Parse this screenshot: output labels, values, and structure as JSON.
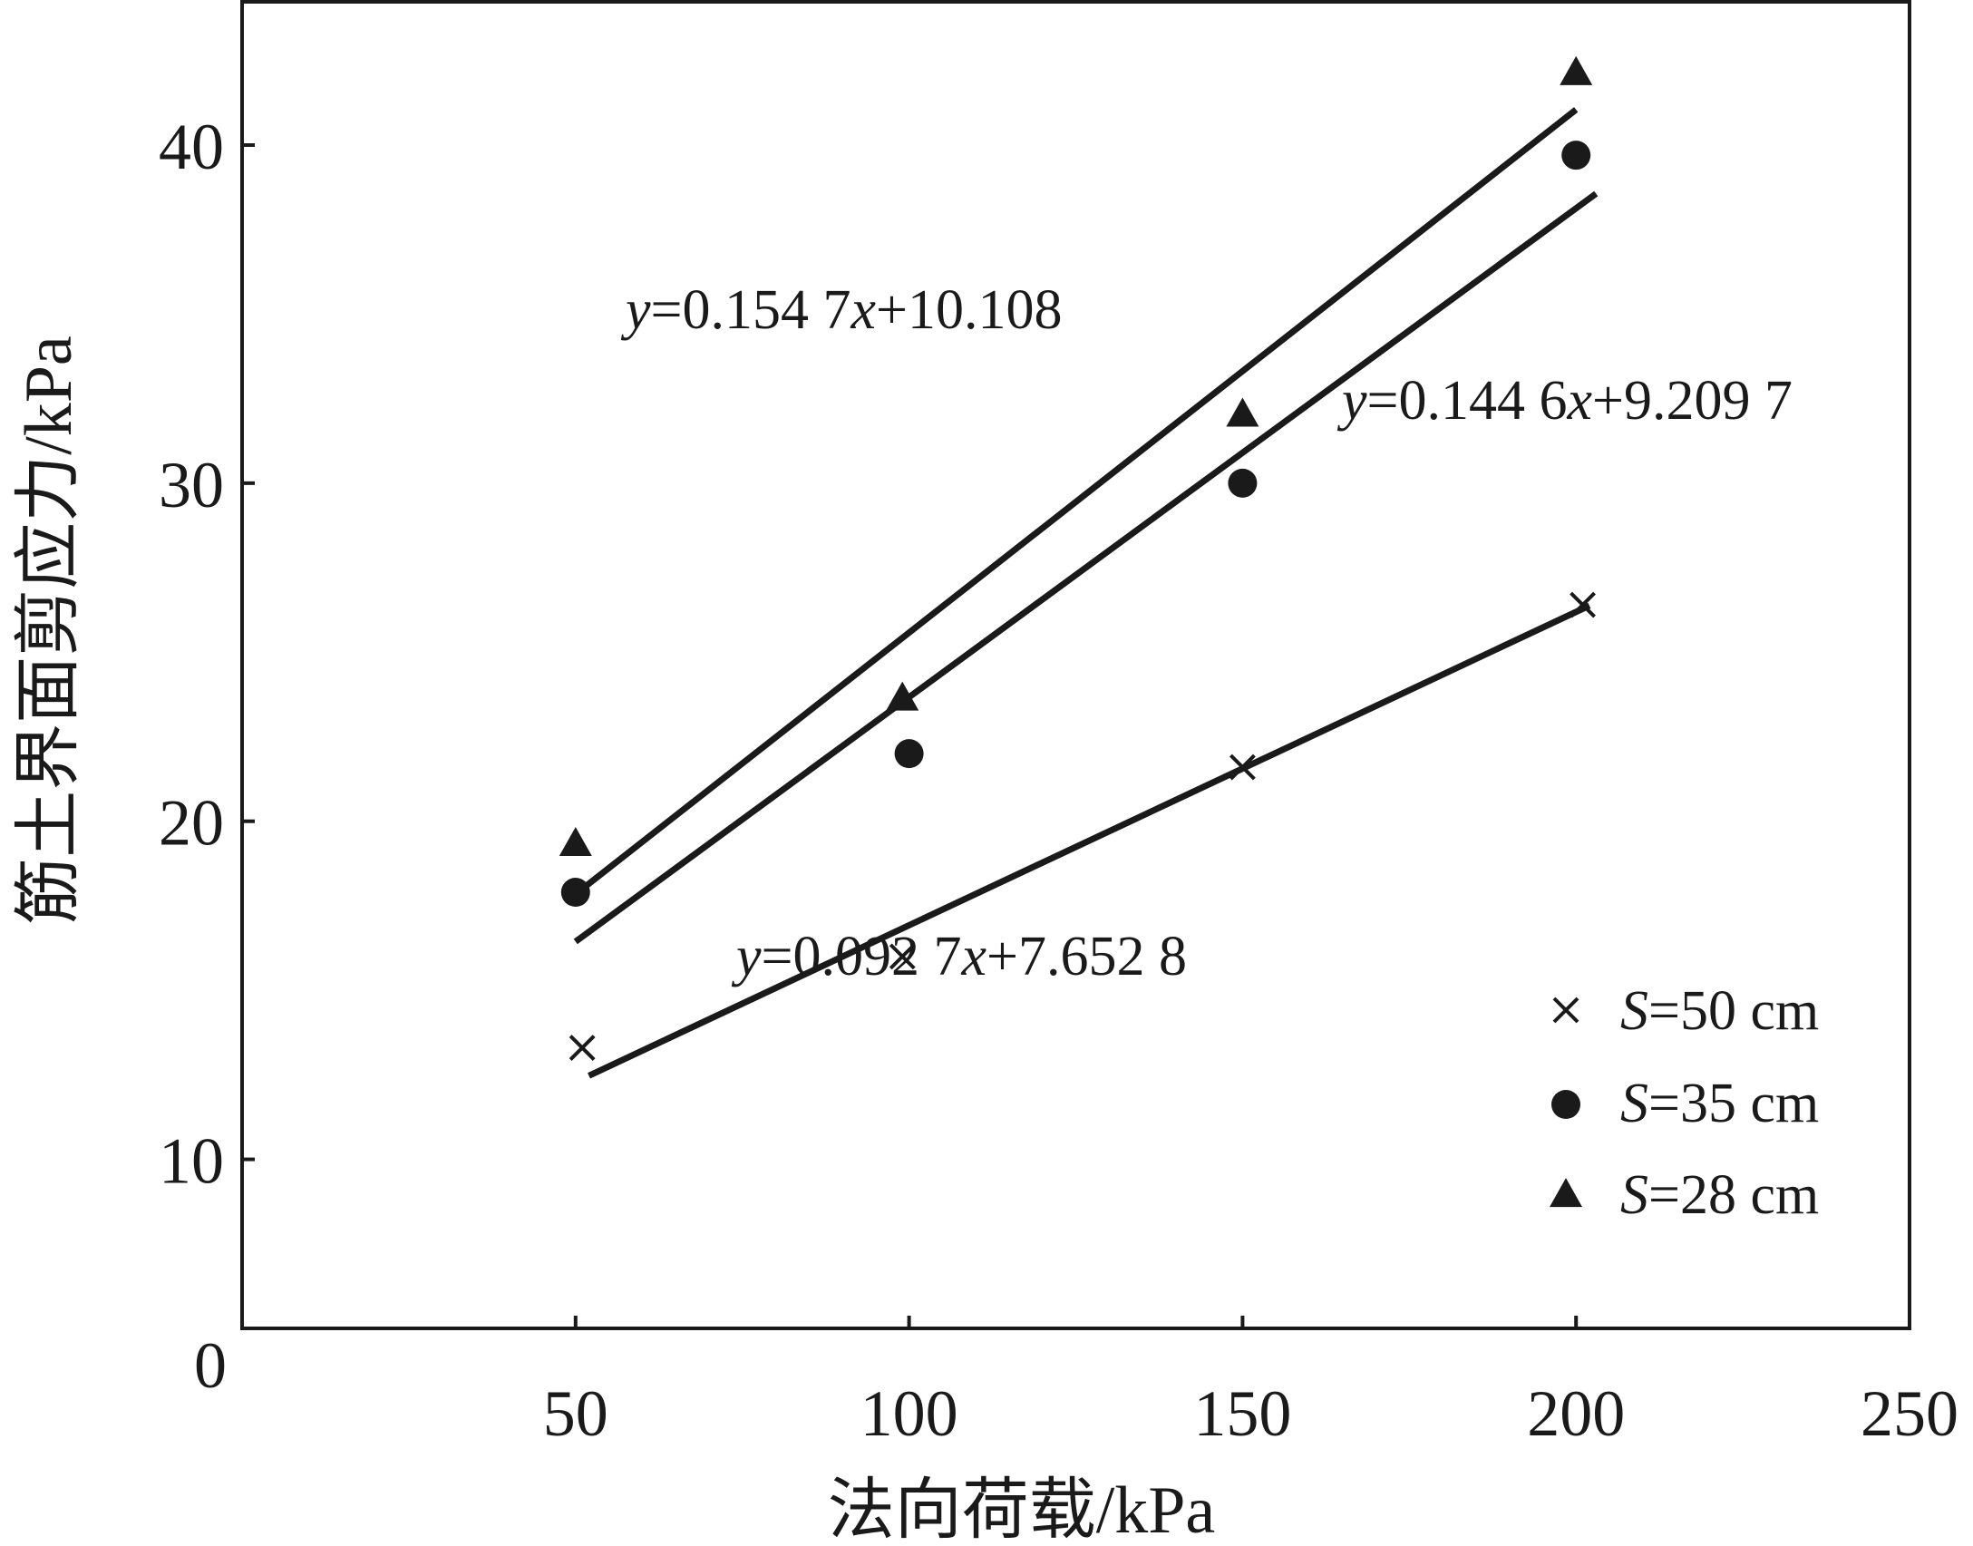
{
  "chart_data": {
    "type": "scatter",
    "xlabel": "法向荷载/kPa",
    "ylabel": "筋土界面剪应力/kPa",
    "xlim": [
      0,
      250
    ],
    "ylim": [
      0,
      45
    ],
    "origin_label": "0",
    "x_ticks": [
      {
        "value": 50,
        "label": "50"
      },
      {
        "value": 100,
        "label": "100"
      },
      {
        "value": 150,
        "label": "150"
      },
      {
        "value": 200,
        "label": "200"
      },
      {
        "value": 250,
        "label": "250"
      }
    ],
    "y_ticks": [
      {
        "value": 10,
        "label": "10"
      },
      {
        "value": 20,
        "label": "20"
      },
      {
        "value": 30,
        "label": "30"
      },
      {
        "value": 40,
        "label": "40"
      }
    ],
    "grid": false,
    "legend_position": "bottom-right",
    "series": [
      {
        "name": "S=50 cm",
        "marker": "cross",
        "x": [
          51,
          99,
          150,
          201
        ],
        "y": [
          13.3,
          16.0,
          21.6,
          26.4
        ],
        "fit": {
          "slope": 0.0927,
          "intercept": 7.6528,
          "x_range": [
            52,
            202
          ],
          "equation": "y=0.092 7x+7.652 8"
        }
      },
      {
        "name": "S=35 cm",
        "marker": "circle",
        "x": [
          50,
          100,
          150,
          200
        ],
        "y": [
          17.9,
          22.0,
          30.0,
          39.7
        ],
        "fit": {
          "slope": 0.1446,
          "intercept": 9.2097,
          "x_range": [
            50,
            203
          ],
          "equation": "y=0.144 6x+9.209 7"
        }
      },
      {
        "name": "S=28 cm",
        "marker": "triangle",
        "x": [
          50,
          99,
          150,
          200
        ],
        "y": [
          19.3,
          23.6,
          32.0,
          42.1
        ],
        "fit": {
          "slope": 0.1547,
          "intercept": 10.108,
          "x_range": [
            50,
            200
          ],
          "equation": "y=0.154 7x+10.108"
        }
      }
    ],
    "annotations": [
      {
        "series": 2,
        "text": "y=0.154 7x+10.108"
      },
      {
        "series": 1,
        "text": "y=0.144 6x+9.209 7"
      },
      {
        "series": 0,
        "text": "y=0.092 7x+7.652 8"
      }
    ],
    "legend": [
      {
        "marker": "cross",
        "label_var": "S",
        "label_rest": "=50 cm"
      },
      {
        "marker": "circle",
        "label_var": "S",
        "label_rest": "=35 cm"
      },
      {
        "marker": "triangle",
        "label_var": "S",
        "label_rest": "=28 cm"
      }
    ],
    "colors": {
      "ink": "#1a1a1a",
      "background": "#ffffff"
    }
  }
}
